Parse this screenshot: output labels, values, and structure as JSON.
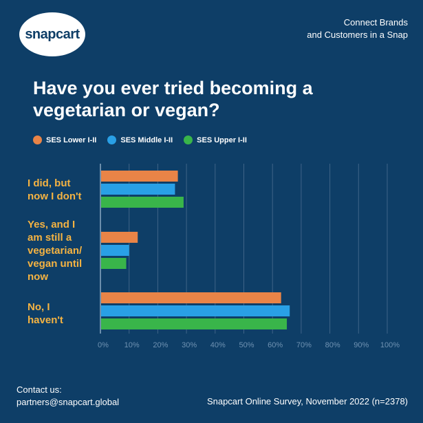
{
  "brand": {
    "logo_text": "snapcart",
    "tagline_line1": "Connect Brands",
    "tagline_line2": "and Customers in a Snap"
  },
  "colors": {
    "background": "#0e3e67",
    "lower": "#e98447",
    "middle": "#29a0e6",
    "upper": "#39b54a",
    "category_label": "#f5b342",
    "axis_text": "#6f92b2"
  },
  "chart_data": {
    "type": "bar",
    "orientation": "horizontal",
    "title": "Have you ever tried becoming a vegetarian or vegan?",
    "categories": [
      "I did, but\nnow I don't",
      "Yes, and I\nam still a\nvegetarian/\nvegan until\nnow",
      "No, I\nhaven't"
    ],
    "series": [
      {
        "name": "SES Lower I-II",
        "values": [
          27,
          13,
          63
        ]
      },
      {
        "name": "SES Middle I-II",
        "values": [
          26,
          10,
          66
        ]
      },
      {
        "name": "SES Upper I-II",
        "values": [
          29,
          9,
          65
        ]
      }
    ],
    "xlim": [
      0,
      100
    ],
    "xticks": [
      "0%",
      "10%",
      "20%",
      "30%",
      "40%",
      "50%",
      "60%",
      "70%",
      "80%",
      "90%",
      "100%"
    ],
    "grid": true,
    "legend_position": "top"
  },
  "footer": {
    "contact_label": "Contact us:",
    "contact_email": "partners@snapcart.global",
    "source": "Snapcart Online Survey, November 2022 (n=2378)"
  }
}
